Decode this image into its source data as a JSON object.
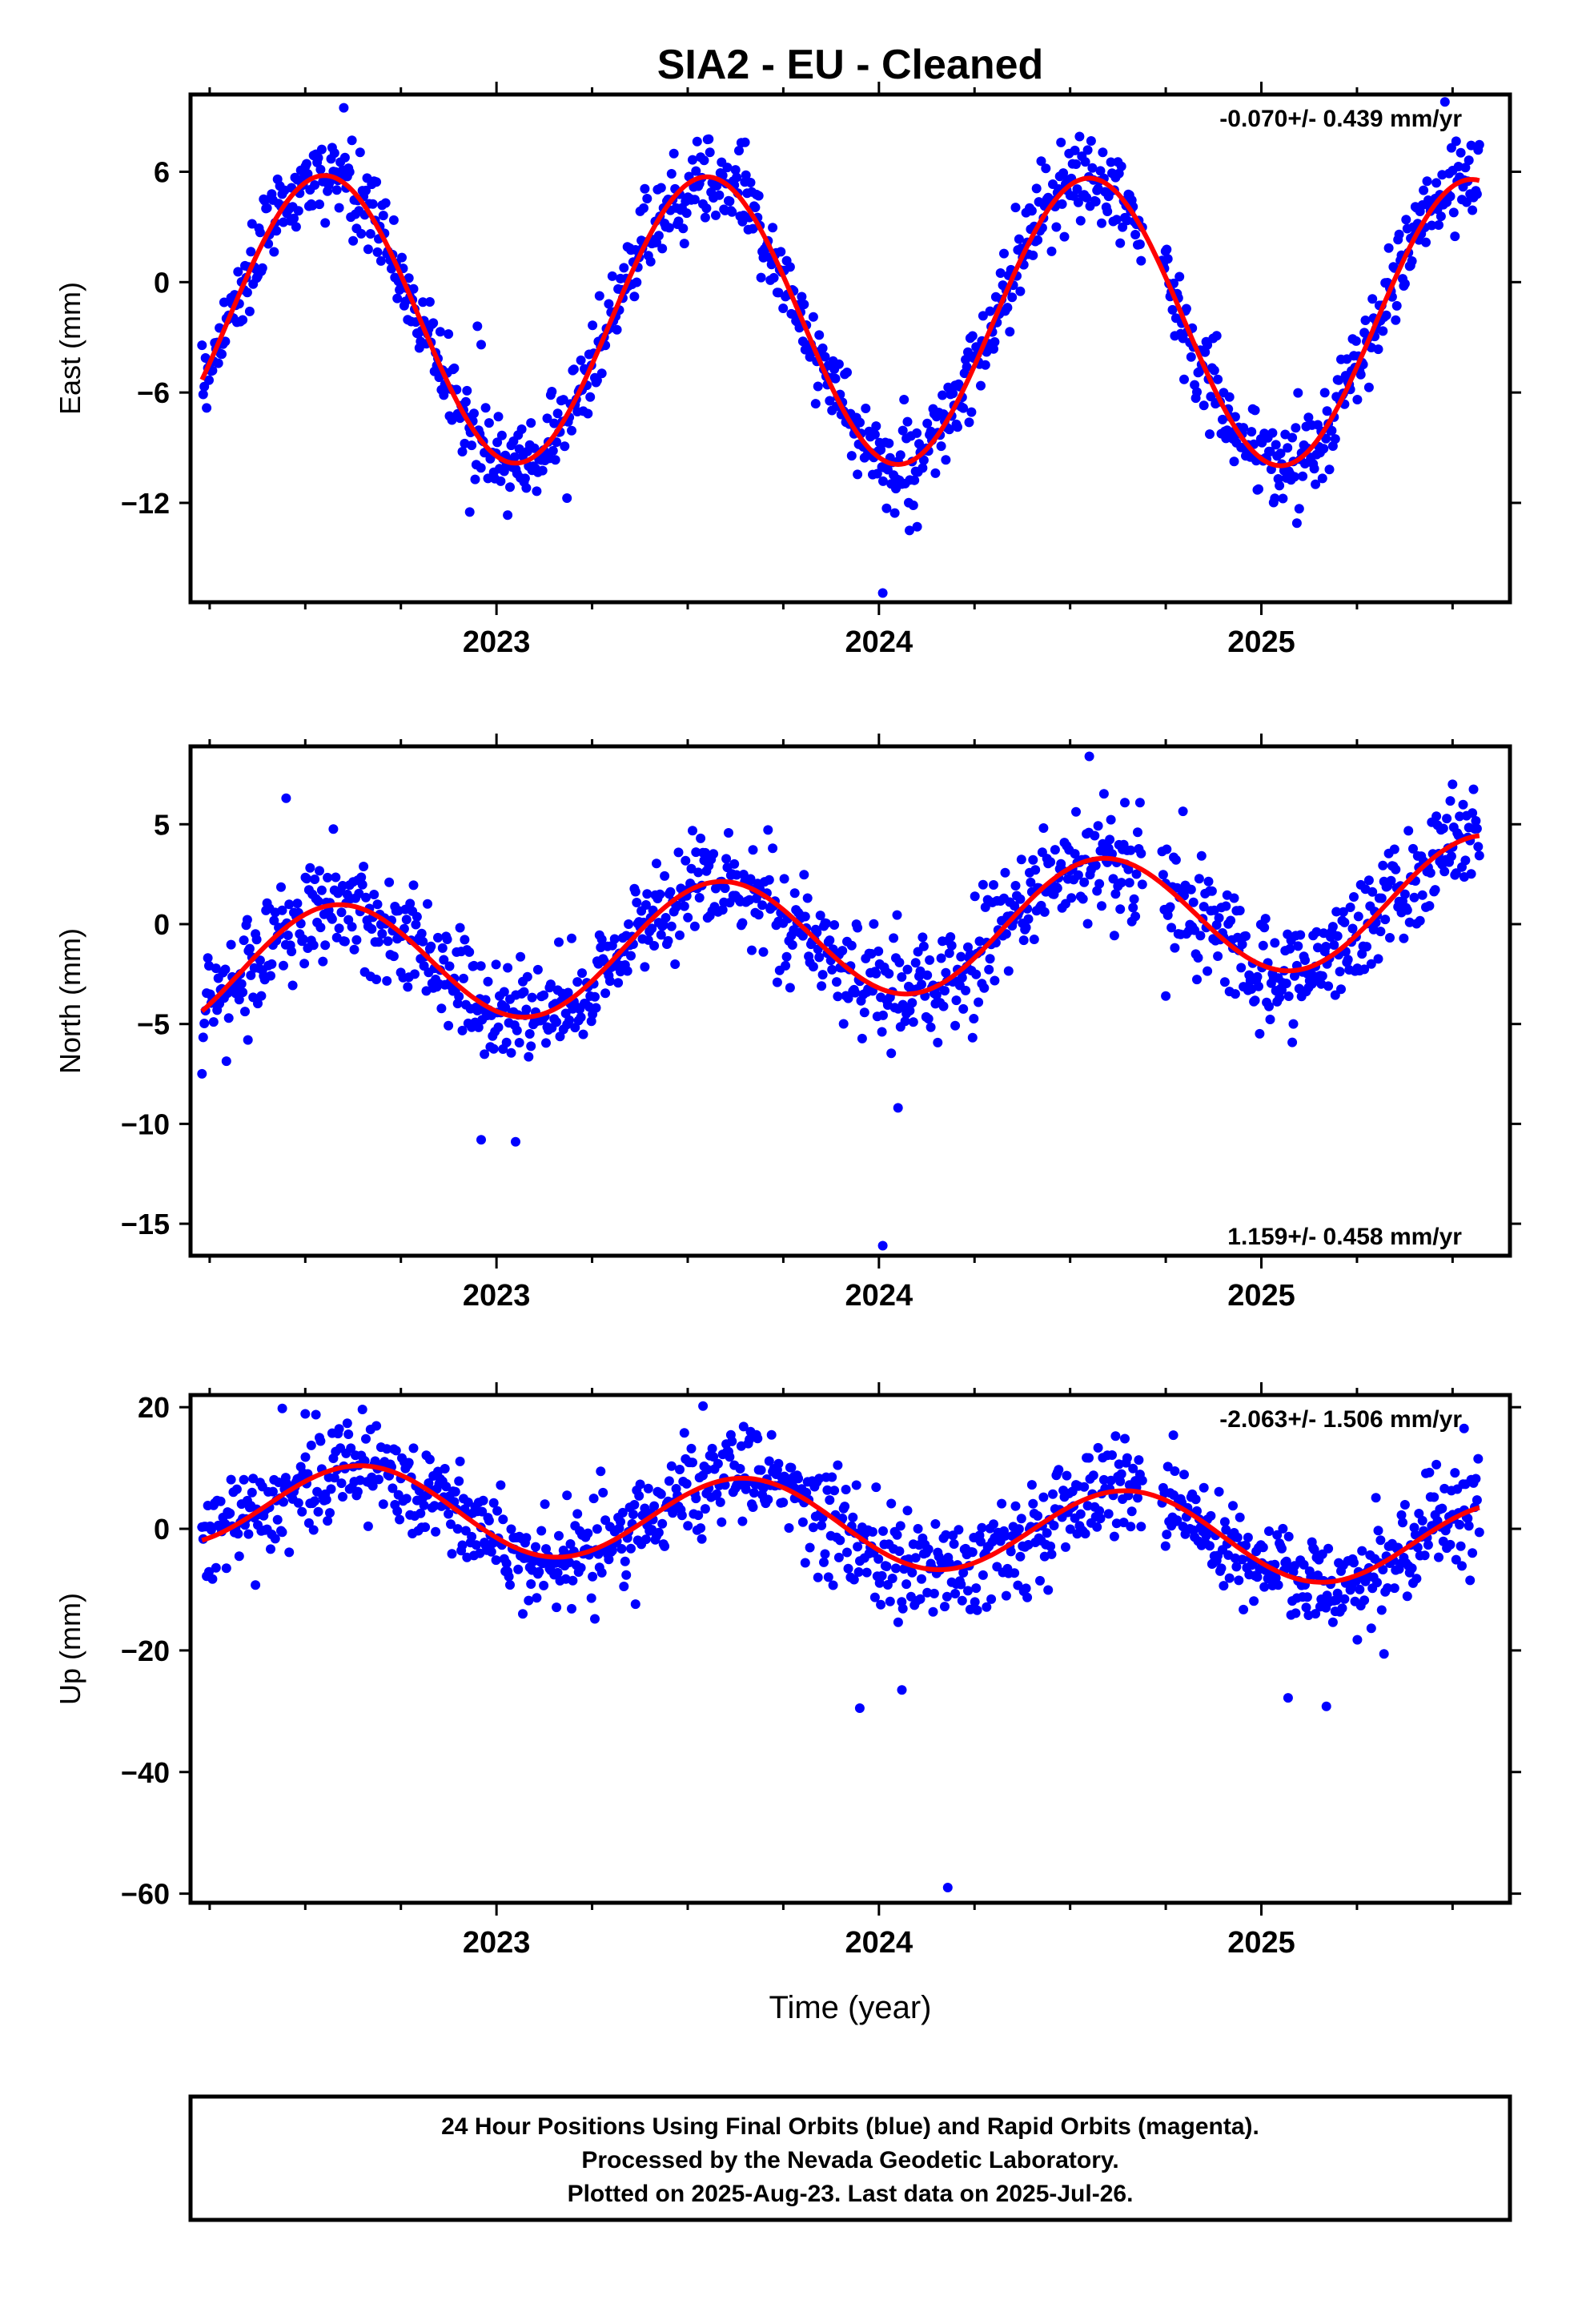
{
  "title": "SIA2  - EU - Cleaned",
  "x_axis_title": "Time (year)",
  "footer": {
    "line1": "24 Hour Positions Using Final Orbits (blue) and Rapid Orbits (magenta).",
    "line2": "Processed by the Nevada Geodetic Laboratory.",
    "line3": "Plotted on 2025-Aug-23. Last data on 2025-Jul-26."
  },
  "colors": {
    "data": "#0000ff",
    "fit": "#ff0000",
    "frame": "#000000"
  },
  "chart_data": [
    {
      "type": "scatter",
      "ylabel": "East (mm)",
      "xlim": [
        2022.2,
        2025.65
      ],
      "ylim": [
        -17.4,
        10.2
      ],
      "x_ticks": [
        2023,
        2024,
        2025
      ],
      "y_ticks": [
        6,
        0,
        -6,
        -12
      ],
      "velocity_label": "-0.070+/- 0.439 mm/yr",
      "velocity_position": "top-right",
      "fit": {
        "mean": -2.1,
        "amplitude": 7.8,
        "peak_year": 2022.55,
        "trend_mm_per_yr": -0.07
      },
      "scatter": {
        "noise_sd": 1.15,
        "count": 1100
      },
      "outliers": [
        {
          "x": 2024.01,
          "y": -16.9
        },
        {
          "x": 2024.08,
          "y": -13.5
        },
        {
          "x": 2024.1,
          "y": -13.3
        },
        {
          "x": 2022.93,
          "y": -12.5
        },
        {
          "x": 2022.95,
          "y": -2.4
        },
        {
          "x": 2022.96,
          "y": -3.4
        },
        {
          "x": 2023.65,
          "y": 7.6
        },
        {
          "x": 2025.48,
          "y": 9.8
        },
        {
          "x": 2025.39,
          "y": 0.9
        }
      ]
    },
    {
      "type": "scatter",
      "ylabel": "North (mm)",
      "xlim": [
        2022.2,
        2025.65
      ],
      "ylim": [
        -16.6,
        8.9
      ],
      "x_ticks": [
        2023,
        2024,
        2025
      ],
      "y_ticks": [
        5,
        0,
        -5,
        -10,
        -15
      ],
      "velocity_label": "1.159+/- 0.458 mm/yr",
      "velocity_position": "bottom-right",
      "fit": {
        "mean": -0.6,
        "amplitude": 3.1,
        "peak_year": 2022.58,
        "trend_mm_per_yr": 1.16
      },
      "scatter": {
        "noise_sd": 1.35,
        "count": 1100
      },
      "outliers": [
        {
          "x": 2024.01,
          "y": -16.1
        },
        {
          "x": 2022.96,
          "y": -10.8
        },
        {
          "x": 2023.05,
          "y": -10.9
        },
        {
          "x": 2024.05,
          "y": -9.2
        },
        {
          "x": 2022.35,
          "y": -5.8
        },
        {
          "x": 2022.45,
          "y": 6.3
        },
        {
          "x": 2024.55,
          "y": 8.4
        },
        {
          "x": 2024.75,
          "y": -3.6
        },
        {
          "x": 2025.5,
          "y": 7.0
        }
      ]
    },
    {
      "type": "scatter",
      "ylabel": "Up (mm)",
      "xlim": [
        2022.2,
        2025.65
      ],
      "ylim": [
        -61.5,
        22.0
      ],
      "x_ticks": [
        2023,
        2024,
        2025
      ],
      "y_ticks": [
        20,
        0,
        -20,
        -40,
        -60
      ],
      "velocity_label": "-2.063+/- 1.506 mm/yr",
      "velocity_position": "top-right",
      "fit": {
        "mean": 0.8,
        "amplitude": 7.0,
        "peak_year": 2022.65,
        "trend_mm_per_yr": -2.06
      },
      "scatter": {
        "noise_sd": 4.2,
        "count": 1100
      },
      "outliers": [
        {
          "x": 2024.18,
          "y": -59.0
        },
        {
          "x": 2023.95,
          "y": -29.5
        },
        {
          "x": 2025.07,
          "y": -27.8
        },
        {
          "x": 2025.17,
          "y": -29.2
        },
        {
          "x": 2024.06,
          "y": -26.5
        },
        {
          "x": 2023.54,
          "y": 20.2
        },
        {
          "x": 2022.44,
          "y": 19.8
        },
        {
          "x": 2022.5,
          "y": 18.9
        },
        {
          "x": 2025.53,
          "y": 16.5
        },
        {
          "x": 2024.77,
          "y": 15.4
        }
      ]
    }
  ]
}
